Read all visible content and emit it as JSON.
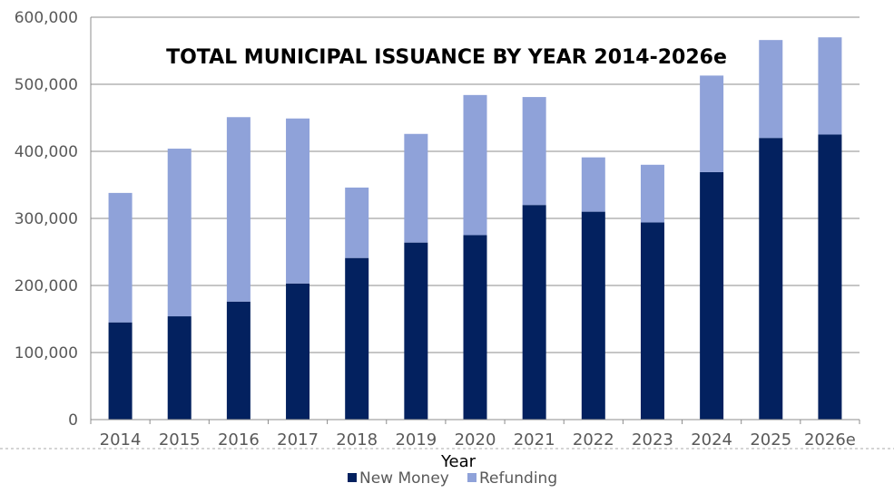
{
  "chart_data": {
    "type": "bar",
    "stacked": true,
    "title": "TOTAL MUNICIPAL ISSUANCE BY YEAR 2014-2026e",
    "xlabel": "Year",
    "ylabel": "",
    "ylim": [
      0,
      600000
    ],
    "yticks": [
      0,
      100000,
      200000,
      300000,
      400000,
      500000,
      600000
    ],
    "ytick_labels": [
      "0",
      "100,000",
      "200,000",
      "300,000",
      "400,000",
      "500,000",
      "600,000"
    ],
    "grid": true,
    "legend_position": "bottom",
    "categories": [
      "2014",
      "2015",
      "2016",
      "2017",
      "2018",
      "2019",
      "2020",
      "2021",
      "2022",
      "2023",
      "2024",
      "2025",
      "2026e"
    ],
    "series": [
      {
        "name": "New Money",
        "color": "#03215f",
        "values": [
          145000,
          154000,
          176000,
          203000,
          241000,
          264000,
          275000,
          320000,
          310000,
          294000,
          369000,
          420000,
          425000
        ]
      },
      {
        "name": "Refunding",
        "color": "#8fa2d9",
        "values": [
          193000,
          250000,
          275000,
          246000,
          105000,
          162000,
          209000,
          161000,
          81000,
          86000,
          144000,
          146000,
          145000
        ]
      }
    ]
  }
}
